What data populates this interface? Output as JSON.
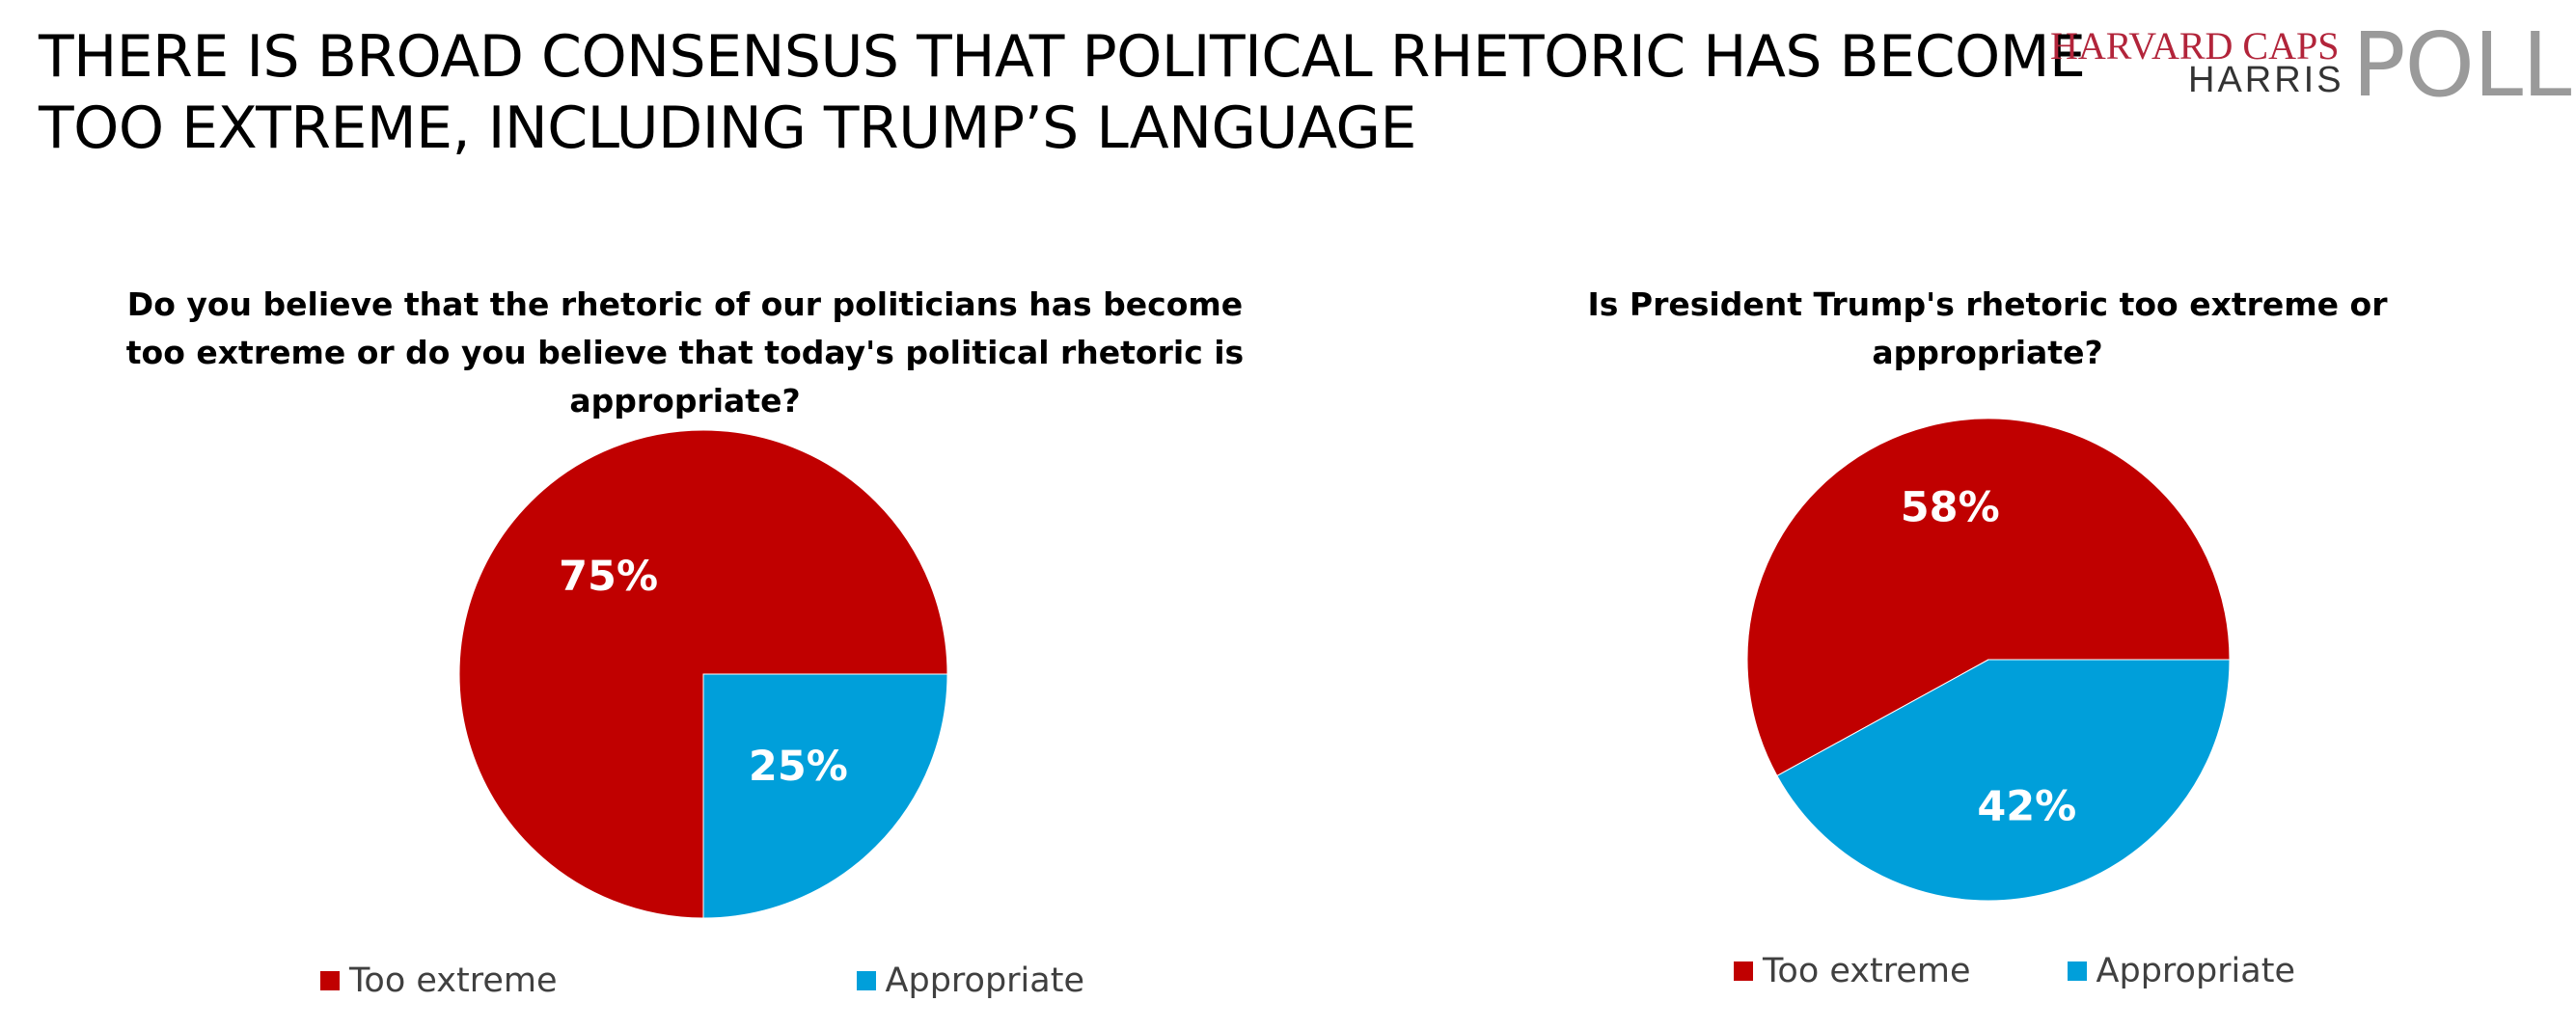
{
  "page": {
    "title_lines": [
      "THERE IS BROAD CONSENSUS THAT POLITICAL RHETORIC HAS BECOME",
      "TOO EXTREME, INCLUDING TRUMP’S LANGUAGE"
    ]
  },
  "logo": {
    "top": "HARVARD CAPS",
    "bottom": "HARRIS",
    "poll": "POLL"
  },
  "chart_data": [
    {
      "type": "pie",
      "title": "Do you believe that the rhetoric of our politicians has become too extreme or do you believe that today's political rhetoric is appropriate?",
      "title_lines": [
        "Do you believe that the rhetoric of our politicians has become",
        "too extreme or do you believe that today's political rhetoric is",
        "appropriate?"
      ],
      "slices": [
        {
          "label": "Too extreme",
          "value": 75,
          "display": "75%",
          "color": "#C00000"
        },
        {
          "label": "Appropriate",
          "value": 25,
          "display": "25%",
          "color": "#009FDA"
        }
      ],
      "legend_position": "bottom"
    },
    {
      "type": "pie",
      "title": "Is President Trump's rhetoric too extreme or appropriate?",
      "title_lines": [
        "Is President Trump's rhetoric too extreme or",
        "appropriate?"
      ],
      "slices": [
        {
          "label": "Too extreme",
          "value": 58,
          "display": "58%",
          "color": "#C00000"
        },
        {
          "label": "Appropriate",
          "value": 42,
          "display": "42%",
          "color": "#009FDA"
        }
      ],
      "legend_position": "bottom"
    }
  ]
}
